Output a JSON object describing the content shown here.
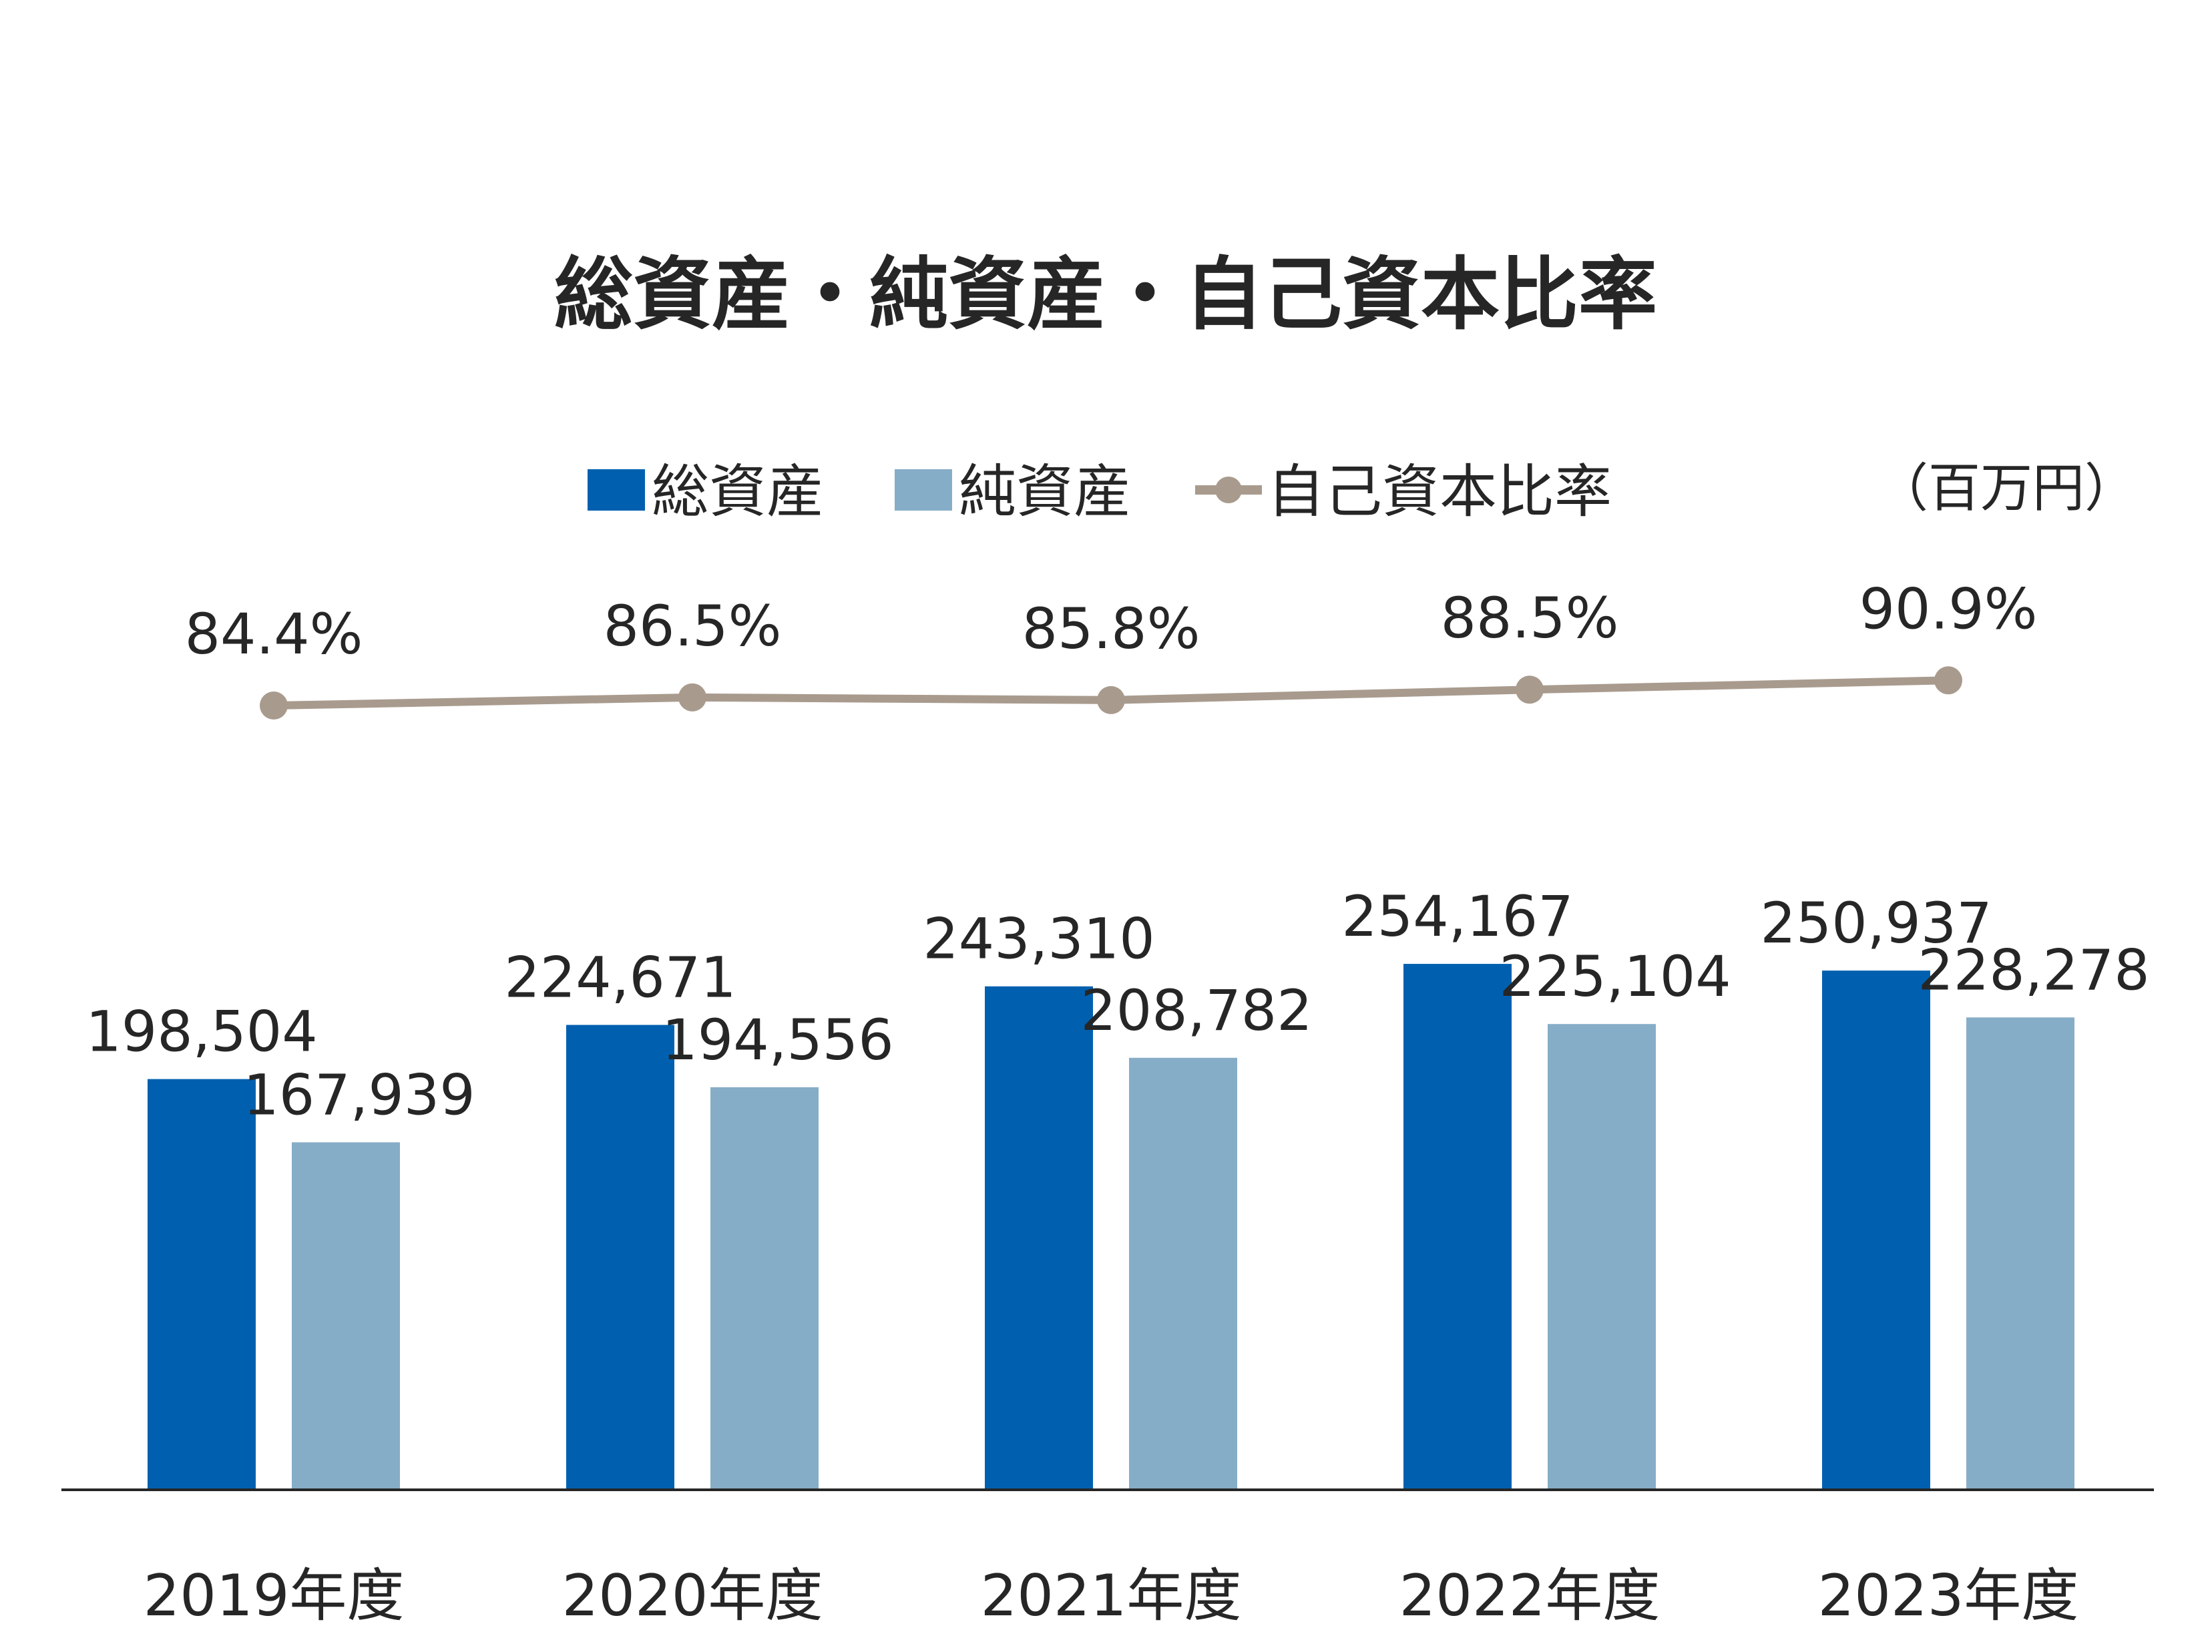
{
  "chart_data": {
    "type": "bar",
    "title": "総資産・純資産・自己資本比率",
    "unit": "（百万円）",
    "categories": [
      "2019年度",
      "2020年度",
      "2021年度",
      "2022年度",
      "2023年度"
    ],
    "series": [
      {
        "name": "総資産",
        "type": "bar",
        "color": "#0060AF",
        "values": [
          198504,
          224671,
          243310,
          254167,
          250937
        ],
        "labels": [
          "198,504",
          "224,671",
          "243,310",
          "254,167",
          "250,937"
        ]
      },
      {
        "name": "純資産",
        "type": "bar",
        "color": "#86ADC7",
        "values": [
          167939,
          194556,
          208782,
          225104,
          228278
        ],
        "labels": [
          "167,939",
          "194,556",
          "208,782",
          "225,104",
          "228,278"
        ]
      },
      {
        "name": "自己資本比率",
        "type": "line",
        "color": "#A89B8E",
        "values": [
          84.4,
          86.5,
          85.8,
          88.5,
          90.9
        ],
        "labels": [
          "84.4%",
          "86.5%",
          "85.8%",
          "88.5%",
          "90.9%"
        ]
      }
    ],
    "legend": "top",
    "grid": false
  }
}
